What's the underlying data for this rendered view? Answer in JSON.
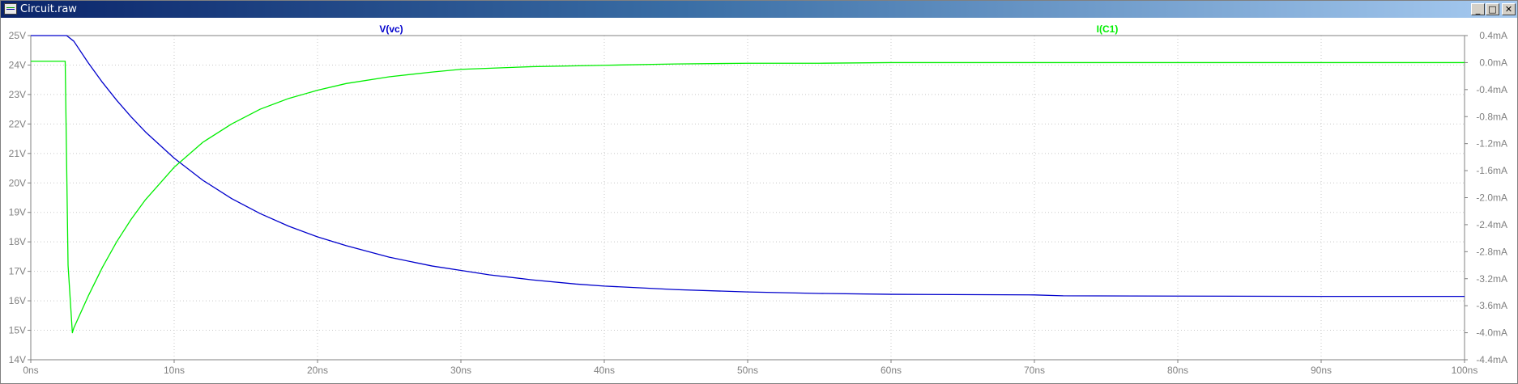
{
  "window": {
    "title": "Circuit.raw",
    "buttons": {
      "minimize": "_",
      "maximize": "□",
      "close": "✕"
    }
  },
  "chart_data": {
    "type": "line",
    "background": "#ffffff",
    "grid_color": "#c8c8c8",
    "tick_label_color": "#808080",
    "x_axis": {
      "range": [
        0,
        100
      ],
      "ticks": [
        0,
        10,
        20,
        30,
        40,
        50,
        60,
        70,
        80,
        90,
        100
      ],
      "tick_labels": [
        "0ns",
        "10ns",
        "20ns",
        "30ns",
        "40ns",
        "50ns",
        "60ns",
        "70ns",
        "80ns",
        "90ns",
        "100ns"
      ]
    },
    "y_left": {
      "range": [
        14,
        25
      ],
      "ticks": [
        25,
        24,
        23,
        22,
        21,
        20,
        19,
        18,
        17,
        16,
        15,
        14
      ],
      "tick_labels": [
        "25V",
        "24V",
        "23V",
        "22V",
        "21V",
        "20V",
        "19V",
        "18V",
        "17V",
        "16V",
        "15V",
        "14V"
      ]
    },
    "y_right": {
      "range": [
        -4.4,
        0.4
      ],
      "ticks": [
        0.4,
        0.0,
        -0.4,
        -0.8,
        -1.2,
        -1.6,
        -2.0,
        -2.4,
        -2.8,
        -3.2,
        -3.6,
        -4.0,
        -4.4
      ],
      "tick_labels": [
        "0.4mA",
        "0.0mA",
        "-0.4mA",
        "-0.8mA",
        "-1.2mA",
        "-1.6mA",
        "-2.0mA",
        "-2.4mA",
        "-2.8mA",
        "-3.2mA",
        "-3.6mA",
        "-4.0mA",
        "-4.4mA"
      ]
    },
    "series": [
      {
        "name": "V(vc)",
        "axis": "left",
        "color": "#0000cc",
        "x": [
          0,
          2.5,
          3,
          4,
          5,
          6,
          7,
          8,
          10,
          12,
          14,
          16,
          18,
          20,
          22,
          25,
          28,
          30,
          32,
          35,
          38,
          40,
          45,
          50,
          55,
          60,
          70,
          72,
          80,
          90,
          100
        ],
        "y": [
          25,
          25,
          24.81,
          24.08,
          23.41,
          22.8,
          22.24,
          21.73,
          20.84,
          20.09,
          19.47,
          18.96,
          18.53,
          18.17,
          17.87,
          17.48,
          17.18,
          17.03,
          16.88,
          16.71,
          16.57,
          16.5,
          16.38,
          16.3,
          16.25,
          16.22,
          16.2,
          16.17,
          16.16,
          16.15,
          16.15
        ]
      },
      {
        "name": "I(C1)",
        "axis": "right",
        "color": "#00ee00",
        "x": [
          0,
          2.2,
          2.4,
          2.6,
          2.9,
          3,
          4,
          5,
          6,
          7,
          8,
          10,
          12,
          14,
          16,
          18,
          20,
          22,
          25,
          28,
          30,
          35,
          40,
          45,
          50,
          55,
          60,
          70,
          80,
          90,
          100
        ],
        "y": [
          0.02,
          0.02,
          0.02,
          -3.0,
          -4.0,
          -3.93,
          -3.46,
          -3.03,
          -2.65,
          -2.32,
          -2.03,
          -1.55,
          -1.18,
          -0.91,
          -0.69,
          -0.53,
          -0.41,
          -0.31,
          -0.21,
          -0.14,
          -0.1,
          -0.06,
          -0.04,
          -0.02,
          -0.01,
          -0.01,
          0.0,
          0.0,
          0.0,
          0.0,
          0.0
        ]
      }
    ]
  }
}
